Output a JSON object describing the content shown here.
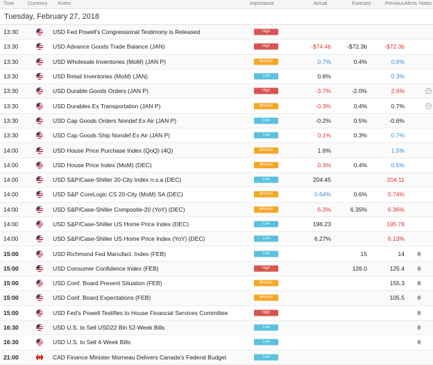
{
  "columns": {
    "time": "Time",
    "currency": "Currency",
    "event": "Event",
    "importance": "Importance",
    "actual": "Actual",
    "forecast": "Forecast",
    "previous": "Previous",
    "alerts": "Alerts",
    "notes": "Notes"
  },
  "date": "Tuesday, February 27, 2018",
  "rows": [
    {
      "time": "13:30",
      "country": "us",
      "event": "USD Fed Powell's Congressional Testimony is Released",
      "importance": "High",
      "actual": "",
      "forecast": "",
      "previous": ""
    },
    {
      "time": "13:30",
      "country": "us",
      "event": "USD Advance Goods Trade Balance (JAN)",
      "importance": "High",
      "actual": "-$74.4b",
      "forecast": "-$72.3b",
      "previous": "-$72.3b"
    },
    {
      "time": "13:30",
      "country": "us",
      "event": "USD Wholesale Inventories (MoM) (JAN P)",
      "importance": "Medium",
      "actual": "0.7%",
      "forecast": "0.4%",
      "previous": "0.6%"
    },
    {
      "time": "13:30",
      "country": "us",
      "event": "USD Retail Inventories (MoM) (JAN)",
      "importance": "Low",
      "actual": "0.8%",
      "forecast": "",
      "previous": "0.3%"
    },
    {
      "time": "13:30",
      "country": "us",
      "event": "USD Durable Goods Orders (JAN P)",
      "importance": "High",
      "actual": "-3.7%",
      "forecast": "-2.0%",
      "previous": "2.6%"
    },
    {
      "time": "13:30",
      "country": "us",
      "event": "USD Durables Ex Transportation (JAN P)",
      "importance": "Medium",
      "actual": "-0.3%",
      "forecast": "0.4%",
      "previous": "0.7%"
    },
    {
      "time": "13:30",
      "country": "us",
      "event": "USD Cap Goods Orders Nondef Ex Air (JAN P)",
      "importance": "Low",
      "actual": "-0.2%",
      "forecast": "0.5%",
      "previous": "-0.6%"
    },
    {
      "time": "13:30",
      "country": "us",
      "event": "USD Cap Goods Ship Nondef Ex Air (JAN P)",
      "importance": "Low",
      "actual": "0.1%",
      "forecast": "0.3%",
      "previous": "0.7%"
    },
    {
      "time": "14:00",
      "country": "us",
      "event": "USD House Price Purchase Index (QoQ) (4Q)",
      "importance": "Medium",
      "actual": "1.6%",
      "forecast": "",
      "previous": "1.5%"
    },
    {
      "time": "14:00",
      "country": "us",
      "event": "USD House Price Index (MoM) (DEC)",
      "importance": "Medium",
      "actual": "0.3%",
      "forecast": "0.4%",
      "previous": "0.5%"
    },
    {
      "time": "14:00",
      "country": "us",
      "event": "USD S&P/Case-Shiller 20-City Index n.s.a (DEC)",
      "importance": "Low",
      "actual": "204.45",
      "forecast": "",
      "previous": "204.11"
    },
    {
      "time": "14:00",
      "country": "us",
      "event": "USD S&P CoreLogic CS 20-City (MoM) SA (DEC)",
      "importance": "Medium",
      "actual": "0.64%",
      "forecast": "0.6%",
      "previous": "0.74%"
    },
    {
      "time": "14:00",
      "country": "us",
      "event": "USD S&P/Case-Shiller Composite-20 (YoY) (DEC)",
      "importance": "Medium",
      "actual": "6.3%",
      "forecast": "6.35%",
      "previous": "6.36%"
    },
    {
      "time": "14:00",
      "country": "us",
      "event": "USD S&P/Case-Shiller US Home Price Index (DEC)",
      "importance": "Low",
      "actual": "196.23",
      "forecast": "",
      "previous": "195.78"
    },
    {
      "time": "14:00",
      "country": "us",
      "event": "USD S&P/Case-Shiller US Home Price Index (YoY) (DEC)",
      "importance": "Low",
      "actual": "6.27%",
      "forecast": "",
      "previous": "6.13%"
    },
    {
      "time": "15:00",
      "country": "us",
      "event": "USD Richmond Fed Manufact. Index (FEB)",
      "importance": "Low",
      "actual": "",
      "forecast": "15",
      "previous": "14"
    },
    {
      "time": "15:00",
      "country": "us",
      "event": "USD Consumer Confidence Index (FEB)",
      "importance": "High",
      "actual": "",
      "forecast": "126.0",
      "previous": "125.4"
    },
    {
      "time": "15:00",
      "country": "us",
      "event": "USD Conf. Board Present Situation (FEB)",
      "importance": "Medium",
      "actual": "",
      "forecast": "",
      "previous": "155.3"
    },
    {
      "time": "15:00",
      "country": "us",
      "event": "USD Conf. Board Expectations (FEB)",
      "importance": "Medium",
      "actual": "",
      "forecast": "",
      "previous": "105.5"
    },
    {
      "time": "15:00",
      "country": "us",
      "event": "USD Fed's Powell Testifies to House Financial Services Committee",
      "importance": "High",
      "actual": "",
      "forecast": "",
      "previous": ""
    },
    {
      "time": "16:30",
      "country": "us",
      "event": "USD U.S. to Sell USD22 Bln 52-Week Bills",
      "importance": "Low",
      "actual": "",
      "forecast": "",
      "previous": ""
    },
    {
      "time": "16:30",
      "country": "us",
      "event": "USD U.S. to Sell 4-Week Bills",
      "importance": "Low",
      "actual": "",
      "forecast": "",
      "previous": ""
    },
    {
      "time": "21:00",
      "country": "ca",
      "event": "CAD Finance Minister Morneau Delivers Canada's Federal Budget",
      "importance": "Low",
      "actual": "",
      "forecast": "",
      "previous": ""
    }
  ]
}
